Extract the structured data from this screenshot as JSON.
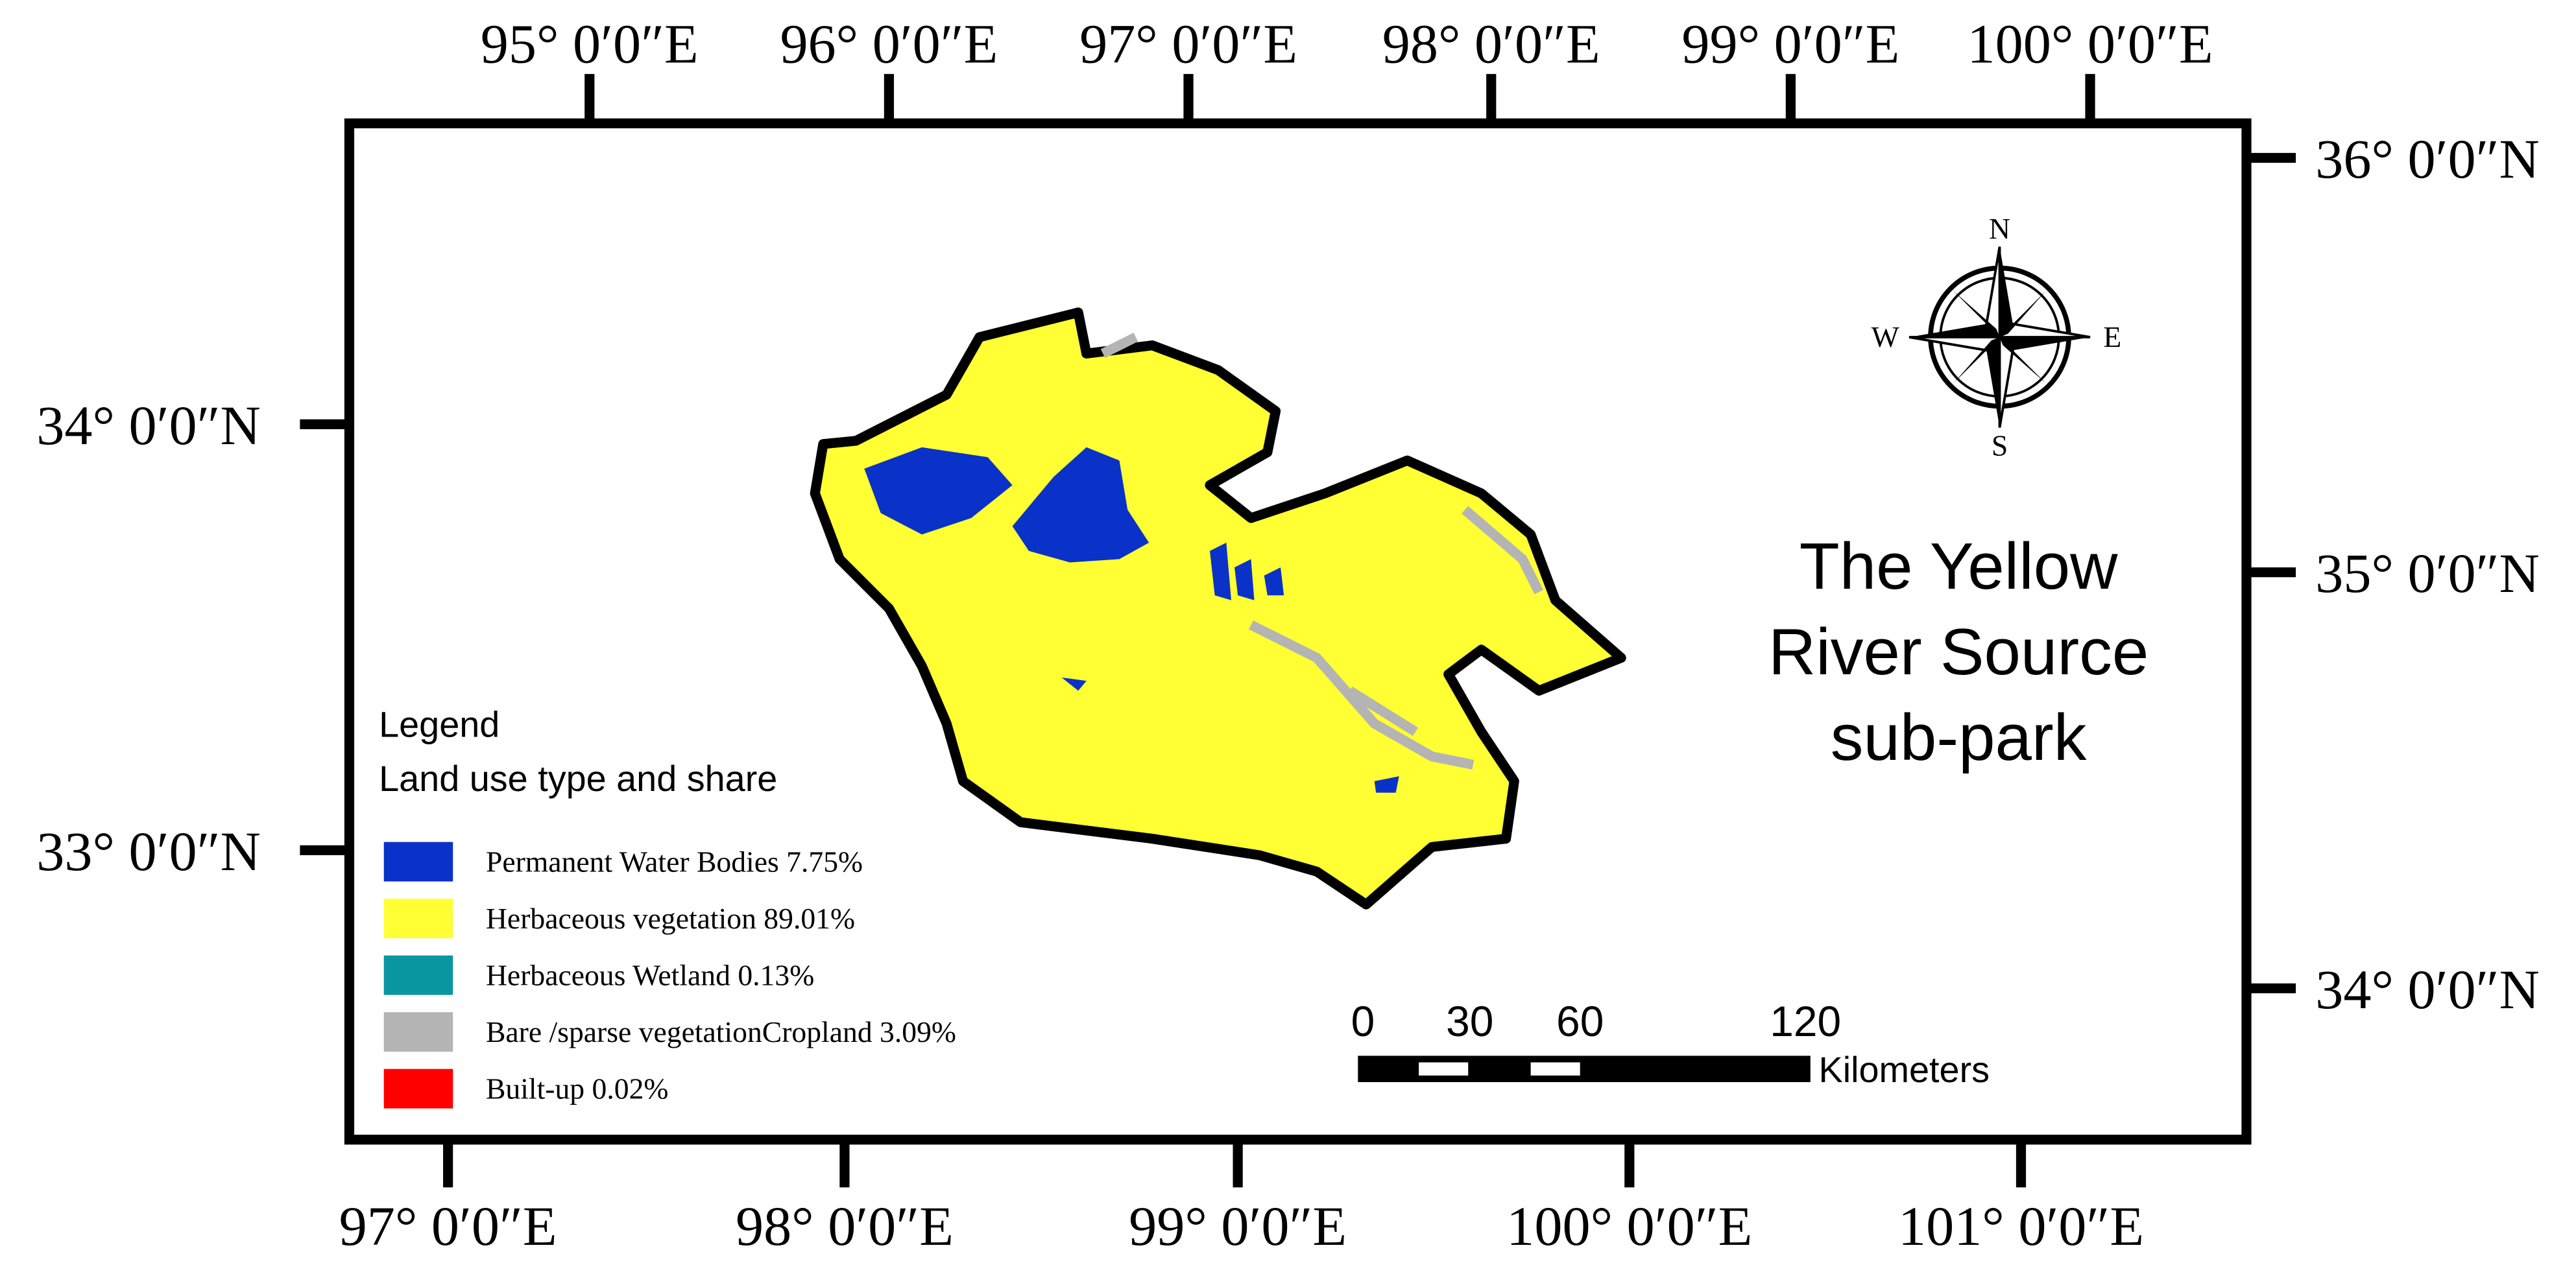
{
  "map": {
    "title": [
      "The Yellow",
      "River Source",
      "sub-park"
    ],
    "top_ticks": [
      "95° 0′0″E",
      "96° 0′0″E",
      "97° 0′0″E",
      "98° 0′0″E",
      "99° 0′0″E",
      "100° 0′0″E"
    ],
    "bottom_ticks": [
      "97° 0′0″E",
      "98° 0′0″E",
      "99° 0′0″E",
      "100° 0′0″E",
      "101° 0′0″E"
    ],
    "left_ticks": [
      "34° 0′0″N",
      "33° 0′0″N"
    ],
    "right_ticks": [
      "36° 0′0″N",
      "35° 0′0″N",
      "34° 0′0″N"
    ],
    "compass": {
      "n": "N",
      "s": "S",
      "e": "E",
      "w": "W"
    },
    "legend": {
      "title": "Legend",
      "subtitle": "Land use type and share",
      "items": [
        {
          "label": "Permanent Water Bodies 7.75%",
          "color": "#0a32c8"
        },
        {
          "label": "Herbaceous vegetation 89.01%",
          "color": "#ffff33"
        },
        {
          "label": "Herbaceous Wetland 0.13%",
          "color": "#0a96a0"
        },
        {
          "label": "Bare /sparse vegetationCropland 3.09%",
          "color": "#b4b4b4"
        },
        {
          "label": "Built-up 0.02%",
          "color": "#ff0000"
        }
      ]
    },
    "scale_bar": {
      "labels": [
        "0",
        "30",
        "60",
        "120"
      ],
      "unit": "Kilometers"
    }
  }
}
